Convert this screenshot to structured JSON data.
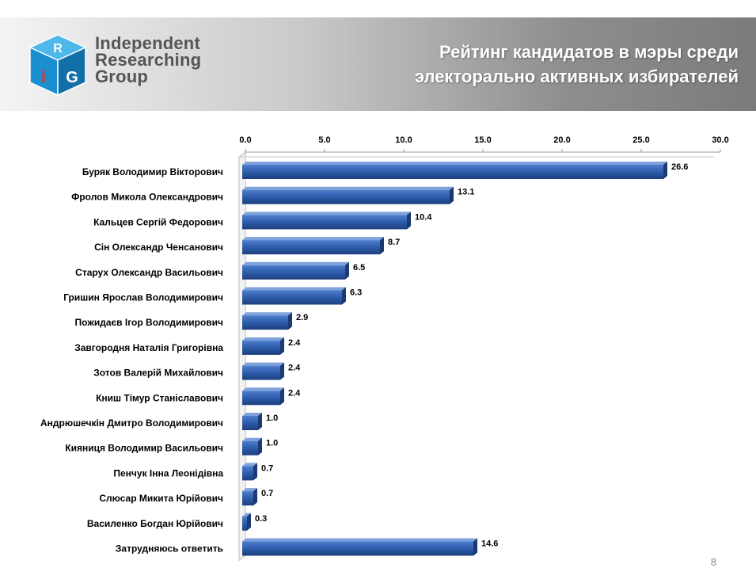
{
  "header": {
    "logo_text_lines": [
      "Independent",
      "Researching",
      "Group"
    ],
    "title_lines": [
      "Рейтинг кандидатов в мэры среди",
      "электорально активных избирателей"
    ]
  },
  "page_number": "8",
  "colors": {
    "bar": "#2f5fae",
    "bar_dark": "#1c3f7e",
    "bar_light": "#6f94d4",
    "logo_cube": "#1e9ad6"
  },
  "chart_data": {
    "type": "bar",
    "orientation": "horizontal",
    "style": "3d",
    "categories": [
      "Буряк Володимир Вікторович",
      "Фролов Микола Олександрович",
      "Кальцев Сергій Федорович",
      "Сін Олександр Ченсанович",
      "Старух Олександр Васильович",
      "Гришин Ярослав Володимирович",
      "Пожидаєв Ігор Володимирович",
      "Завгородня Наталія Григорівна",
      "Зотов Валерій Михайлович",
      "Книш Тімур Станіславович",
      "Андрюшечкін Дмитро Володимирович",
      "Кияниця  Володимир Васильович",
      "Пенчук Інна Леонідівна",
      "Слюсар Микита  Юрійович",
      "Василенко Богдан  Юрійович",
      "Затрудняюсь ответить"
    ],
    "values": [
      26.6,
      13.1,
      10.4,
      8.7,
      6.5,
      6.3,
      2.9,
      2.4,
      2.4,
      2.4,
      1.0,
      1.0,
      0.7,
      0.7,
      0.3,
      14.6
    ],
    "value_labels": [
      "26.6",
      "13.1",
      "10.4",
      "8.7",
      "6.5",
      "6.3",
      "2.9",
      "2.4",
      "2.4",
      "2.4",
      "1.0",
      "1.0",
      "0.7",
      "0.7",
      "0.3",
      "14.6"
    ],
    "xlim": [
      0,
      30
    ],
    "xticks": [
      0,
      5,
      10,
      15,
      20,
      25,
      30
    ],
    "xtick_labels": [
      "0.0",
      "5.0",
      "10.0",
      "15.0",
      "20.0",
      "25.0",
      "30.0"
    ],
    "axis_position": "top",
    "grid": false,
    "legend": "none"
  }
}
